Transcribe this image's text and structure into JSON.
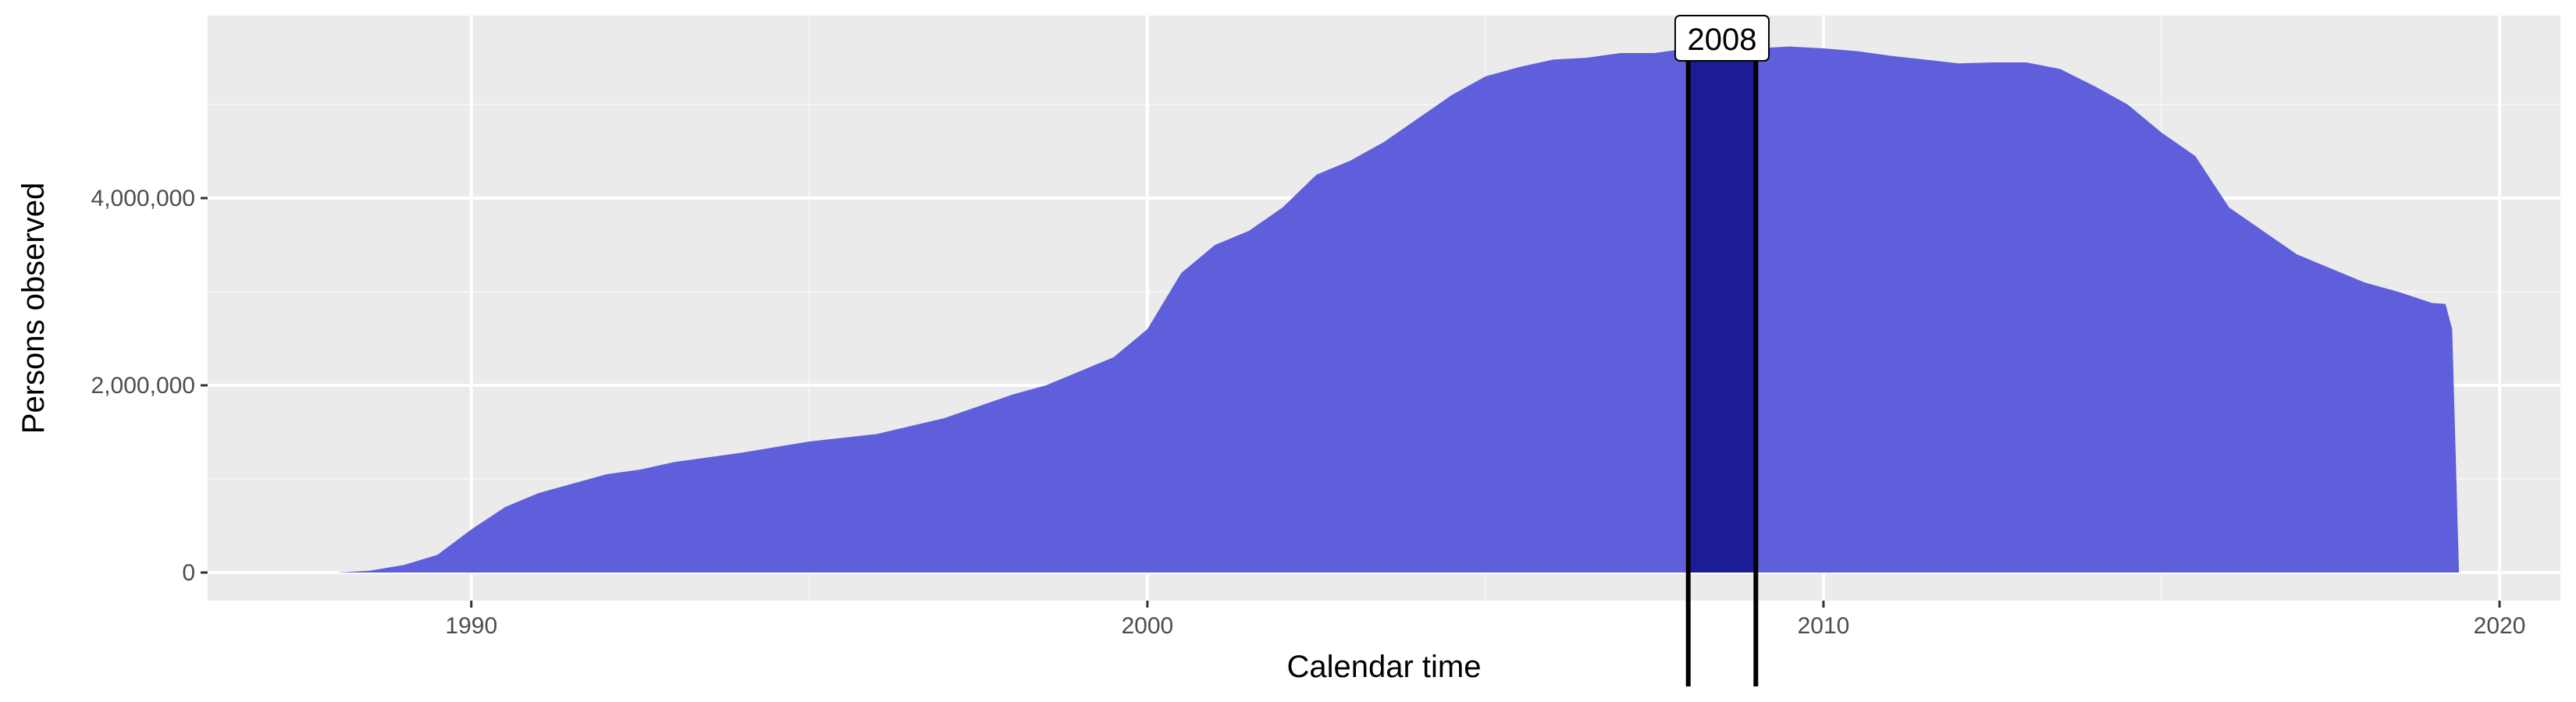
{
  "chart_data": {
    "type": "area",
    "title": "",
    "xlabel": "Calendar time",
    "ylabel": "Persons observed",
    "xlim": [
      1986.1,
      2020.9
    ],
    "ylim": [
      -300000,
      5950000
    ],
    "x_ticks": [
      1990,
      2000,
      2010,
      2020
    ],
    "x_tick_labels": [
      "1990",
      "2000",
      "2010",
      "2020"
    ],
    "y_ticks": [
      0,
      2000000,
      4000000
    ],
    "y_tick_labels": [
      "0",
      "2,000,000",
      "4,000,000"
    ],
    "grid": true,
    "legend": "none",
    "series": [
      {
        "x": [
          1988.0,
          1988.5,
          1989.0,
          1989.5,
          1990.0,
          1990.5,
          1991.0,
          1991.5,
          1992.0,
          1992.5,
          1993.0,
          1994.0,
          1995.0,
          1996.0,
          1997.0,
          1998.0,
          1998.5,
          1999.0,
          1999.5,
          2000.0,
          2000.5,
          2001.0,
          2001.5,
          2002.0,
          2002.5,
          2003.0,
          2003.5,
          2004.0,
          2004.5,
          2005.0,
          2005.5,
          2006.0,
          2006.5,
          2007.0,
          2007.5,
          2008.0,
          2008.5,
          2009.0,
          2009.5,
          2010.0,
          2010.5,
          2011.0,
          2011.5,
          2012.0,
          2012.5,
          2013.0,
          2013.5,
          2014.0,
          2014.5,
          2015.0,
          2015.5,
          2016.0,
          2016.5,
          2017.0,
          2017.5,
          2018.0,
          2018.5,
          2019.0,
          2019.2,
          2019.3,
          2019.4
        ],
        "y": [
          0,
          20000,
          80000,
          190000,
          460000,
          700000,
          850000,
          950000,
          1050000,
          1100000,
          1180000,
          1280000,
          1400000,
          1480000,
          1650000,
          1900000,
          2000000,
          2150000,
          2300000,
          2600000,
          3200000,
          3500000,
          3650000,
          3900000,
          4250000,
          4400000,
          4600000,
          4850000,
          5100000,
          5300000,
          5400000,
          5480000,
          5500000,
          5550000,
          5550000,
          5600000,
          5600000,
          5600000,
          5620000,
          5600000,
          5570000,
          5520000,
          5480000,
          5440000,
          5450000,
          5450000,
          5380000,
          5200000,
          5000000,
          4700000,
          4450000,
          3900000,
          3650000,
          3400000,
          3250000,
          3100000,
          3000000,
          2880000,
          2870000,
          2600000,
          0
        ]
      }
    ],
    "highlight": {
      "x_start": 2008.0,
      "x_end": 2009.0,
      "label": "2008"
    },
    "colors": {
      "panel_background": "#ebebeb",
      "grid_major": "#ffffff",
      "grid_minor": "#f5f5f5",
      "area_fill": "#5f5fdb",
      "highlight_fill": "#1c1c96",
      "highlight_line": "#000000",
      "axis_text": "#4d4d4d",
      "axis_title": "#000000"
    }
  }
}
